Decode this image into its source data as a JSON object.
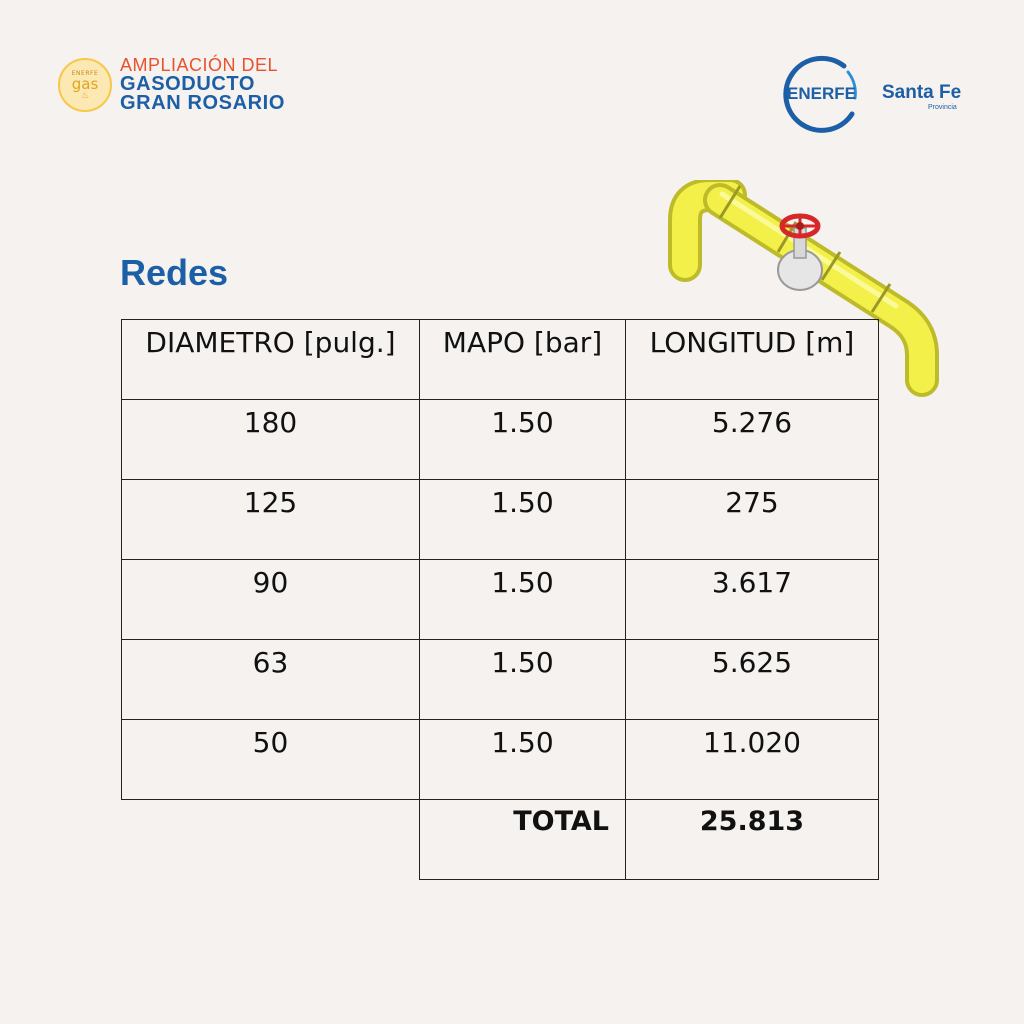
{
  "header": {
    "badge_small": "ENERFE",
    "badge_gas": "gas",
    "project_line1": "AMPLIACIÓN DEL",
    "project_line2": "GASODUCTO",
    "project_line3": "GRAN ROSARIO",
    "enerfe": "ENERFE",
    "santa_fe": "Santa Fe",
    "provincia": "Provincia"
  },
  "section_title": "Redes",
  "table": {
    "headers": [
      "DIAMETRO [pulg.]",
      "MAPO [bar]",
      "LONGITUD [m]"
    ],
    "rows": [
      [
        "180",
        "1.50",
        "5.276"
      ],
      [
        "125",
        "1.50",
        "275"
      ],
      [
        "90",
        "1.50",
        "3.617"
      ],
      [
        "63",
        "1.50",
        "5.625"
      ],
      [
        "50",
        "1.50",
        "11.020"
      ]
    ],
    "total_label": "TOTAL",
    "total_value": "25.813"
  },
  "colors": {
    "background": "#f5f2ef",
    "brand_blue": "#1c5fa6",
    "accent_orange": "#e8522f",
    "pipe_yellow": "#f3f04a",
    "valve_red": "#d62828"
  },
  "icons": [
    "gas-logo-icon",
    "enerfe-ring-icon",
    "pipe-valve-icon"
  ]
}
